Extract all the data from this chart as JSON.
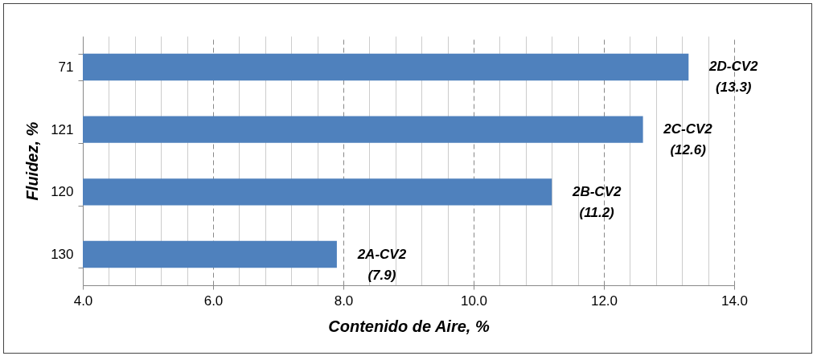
{
  "chart_data": {
    "type": "bar",
    "orientation": "horizontal",
    "xlabel": "Contenido de Aire, %",
    "ylabel": "Fluidez, %",
    "categories": [
      "71",
      "121",
      "120",
      "130"
    ],
    "values": [
      13.3,
      12.6,
      11.2,
      7.9
    ],
    "value_labels": [
      "2D-CV2 (13.3)",
      "2C-CV2 (12.6)",
      "2B-CV2 (11.2)",
      "2A-CV2 (7.9)"
    ],
    "color": "#4f81bd",
    "xlim": [
      4,
      14
    ],
    "xticks": [
      {
        "value": 4,
        "label": "4.0"
      },
      {
        "value": 6,
        "label": "6.0"
      },
      {
        "value": 8,
        "label": "8.0"
      },
      {
        "value": 10,
        "label": "10.0"
      },
      {
        "value": 12,
        "label": "12.0"
      },
      {
        "value": 14,
        "label": "14.0"
      }
    ],
    "grid": "x"
  }
}
